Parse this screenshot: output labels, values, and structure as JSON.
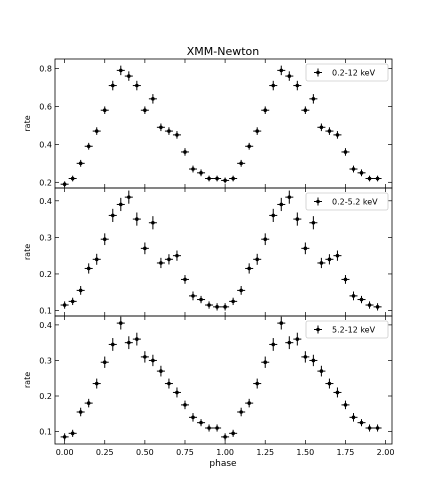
{
  "figure": {
    "title": "XMM-Newton",
    "xlabel": "phase",
    "x_ticks": [
      0.0,
      0.25,
      0.5,
      0.75,
      1.0,
      1.25,
      1.5,
      1.75,
      2.0
    ],
    "x_tick_labels": [
      "0.00",
      "0.25",
      "0.50",
      "0.75",
      "1.00",
      "1.25",
      "1.50",
      "1.75",
      "2.00"
    ]
  },
  "chart_data": [
    {
      "type": "scatter",
      "name": "0.2-12 keV",
      "xlabel": "phase",
      "ylabel": "rate",
      "xlim": [
        -0.06,
        2.04
      ],
      "ylim": [
        0.17,
        0.85
      ],
      "y_ticks": [
        0.2,
        0.4,
        0.6,
        0.8
      ],
      "y_tick_labels": [
        "0.2",
        "0.4",
        "0.6",
        "0.8"
      ],
      "legend": "top-right",
      "x_err": 0.025,
      "x": [
        0.0,
        0.05,
        0.1,
        0.15,
        0.2,
        0.25,
        0.3,
        0.35,
        0.4,
        0.45,
        0.5,
        0.55,
        0.6,
        0.65,
        0.7,
        0.75,
        0.8,
        0.85,
        0.9,
        0.95,
        1.0,
        1.05,
        1.1,
        1.15,
        1.2,
        1.25,
        1.3,
        1.35,
        1.4,
        1.45,
        1.5,
        1.55,
        1.6,
        1.65,
        1.7,
        1.75,
        1.8,
        1.85,
        1.9,
        1.95
      ],
      "y": [
        0.19,
        0.22,
        0.3,
        0.39,
        0.47,
        0.58,
        0.71,
        0.79,
        0.76,
        0.71,
        0.58,
        0.64,
        0.49,
        0.47,
        0.45,
        0.36,
        0.27,
        0.25,
        0.22,
        0.22,
        0.21,
        0.22,
        0.3,
        0.39,
        0.47,
        0.58,
        0.71,
        0.79,
        0.76,
        0.71,
        0.58,
        0.64,
        0.49,
        0.47,
        0.45,
        0.36,
        0.27,
        0.25,
        0.22,
        0.22
      ],
      "y_err": [
        0.015,
        0.015,
        0.018,
        0.018,
        0.02,
        0.02,
        0.025,
        0.025,
        0.025,
        0.025,
        0.02,
        0.025,
        0.02,
        0.02,
        0.02,
        0.02,
        0.018,
        0.018,
        0.015,
        0.015,
        0.015,
        0.015,
        0.018,
        0.018,
        0.02,
        0.02,
        0.025,
        0.025,
        0.025,
        0.025,
        0.02,
        0.025,
        0.02,
        0.02,
        0.02,
        0.02,
        0.018,
        0.018,
        0.015,
        0.015
      ]
    },
    {
      "type": "scatter",
      "name": "0.2-5.2 keV",
      "xlabel": "phase",
      "ylabel": "rate",
      "xlim": [
        -0.06,
        2.04
      ],
      "ylim": [
        0.085,
        0.435
      ],
      "y_ticks": [
        0.1,
        0.2,
        0.3,
        0.4
      ],
      "y_tick_labels": [
        "0.1",
        "0.2",
        "0.3",
        "0.4"
      ],
      "legend": "top-right",
      "x_err": 0.025,
      "x": [
        0.0,
        0.05,
        0.1,
        0.15,
        0.2,
        0.25,
        0.3,
        0.35,
        0.4,
        0.45,
        0.5,
        0.55,
        0.6,
        0.65,
        0.7,
        0.75,
        0.8,
        0.85,
        0.9,
        0.95,
        1.0,
        1.05,
        1.1,
        1.15,
        1.2,
        1.25,
        1.3,
        1.35,
        1.4,
        1.45,
        1.5,
        1.55,
        1.6,
        1.65,
        1.7,
        1.75,
        1.8,
        1.85,
        1.9,
        1.95
      ],
      "y": [
        0.115,
        0.125,
        0.155,
        0.215,
        0.24,
        0.295,
        0.36,
        0.39,
        0.41,
        0.35,
        0.27,
        0.34,
        0.23,
        0.24,
        0.25,
        0.185,
        0.14,
        0.13,
        0.115,
        0.11,
        0.11,
        0.125,
        0.155,
        0.215,
        0.24,
        0.295,
        0.36,
        0.39,
        0.41,
        0.35,
        0.27,
        0.34,
        0.23,
        0.24,
        0.25,
        0.185,
        0.14,
        0.13,
        0.115,
        0.11
      ],
      "y_err": [
        0.01,
        0.01,
        0.012,
        0.014,
        0.015,
        0.016,
        0.018,
        0.018,
        0.018,
        0.018,
        0.016,
        0.018,
        0.014,
        0.014,
        0.014,
        0.012,
        0.012,
        0.01,
        0.01,
        0.01,
        0.01,
        0.01,
        0.012,
        0.014,
        0.015,
        0.016,
        0.018,
        0.018,
        0.018,
        0.018,
        0.016,
        0.018,
        0.014,
        0.014,
        0.014,
        0.012,
        0.012,
        0.01,
        0.01,
        0.01
      ]
    },
    {
      "type": "scatter",
      "name": "5.2-12 keV",
      "xlabel": "phase",
      "ylabel": "rate",
      "xlim": [
        -0.06,
        2.04
      ],
      "ylim": [
        0.065,
        0.425
      ],
      "y_ticks": [
        0.1,
        0.2,
        0.3,
        0.4
      ],
      "y_tick_labels": [
        "0.1",
        "0.2",
        "0.3",
        "0.4"
      ],
      "legend": "top-right",
      "x_err": 0.025,
      "x": [
        0.0,
        0.05,
        0.1,
        0.15,
        0.2,
        0.25,
        0.3,
        0.35,
        0.4,
        0.45,
        0.5,
        0.55,
        0.6,
        0.65,
        0.7,
        0.75,
        0.8,
        0.85,
        0.9,
        0.95,
        1.0,
        1.05,
        1.1,
        1.15,
        1.2,
        1.25,
        1.3,
        1.35,
        1.4,
        1.45,
        1.5,
        1.55,
        1.6,
        1.65,
        1.7,
        1.75,
        1.8,
        1.85,
        1.9,
        1.95
      ],
      "y": [
        0.085,
        0.095,
        0.155,
        0.18,
        0.235,
        0.295,
        0.345,
        0.405,
        0.35,
        0.36,
        0.31,
        0.3,
        0.27,
        0.235,
        0.21,
        0.175,
        0.14,
        0.125,
        0.11,
        0.11,
        0.085,
        0.095,
        0.155,
        0.18,
        0.235,
        0.295,
        0.345,
        0.405,
        0.35,
        0.36,
        0.31,
        0.3,
        0.27,
        0.235,
        0.21,
        0.175,
        0.14,
        0.125,
        0.11,
        0.11
      ],
      "y_err": [
        0.01,
        0.01,
        0.012,
        0.012,
        0.014,
        0.016,
        0.018,
        0.018,
        0.018,
        0.018,
        0.016,
        0.016,
        0.015,
        0.014,
        0.014,
        0.012,
        0.012,
        0.01,
        0.01,
        0.01,
        0.01,
        0.01,
        0.012,
        0.012,
        0.014,
        0.016,
        0.018,
        0.018,
        0.018,
        0.018,
        0.016,
        0.016,
        0.015,
        0.014,
        0.014,
        0.012,
        0.012,
        0.01,
        0.01,
        0.01
      ]
    }
  ]
}
